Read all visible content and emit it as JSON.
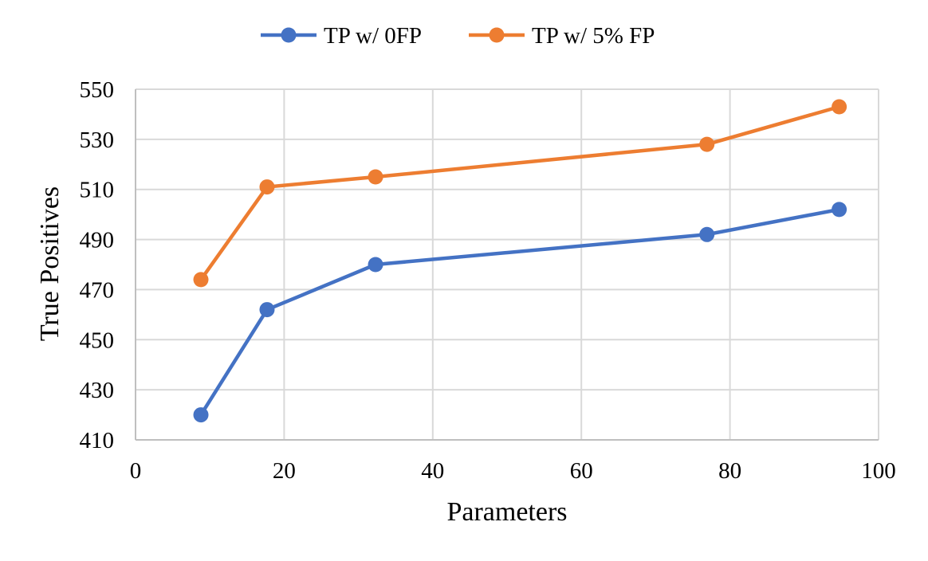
{
  "chart_data": {
    "type": "line",
    "xlabel": "Parameters",
    "ylabel": "True Positives",
    "xlim": [
      0,
      100
    ],
    "ylim": [
      410,
      550
    ],
    "x_ticks": [
      0,
      20,
      40,
      60,
      80,
      100
    ],
    "y_ticks": [
      410,
      430,
      450,
      470,
      490,
      510,
      530,
      550
    ],
    "grid": true,
    "legend_position": "top",
    "series": [
      {
        "name": "TP w/ 0FP",
        "color": "#4472C4",
        "x": [
          8.8,
          17.7,
          32.3,
          76.9,
          94.7
        ],
        "y": [
          420,
          462,
          480,
          492,
          502
        ]
      },
      {
        "name": "TP w/ 5% FP",
        "color": "#ED7D31",
        "x": [
          8.8,
          17.7,
          32.3,
          76.9,
          94.7
        ],
        "y": [
          474,
          511,
          515,
          528,
          543
        ]
      }
    ]
  }
}
